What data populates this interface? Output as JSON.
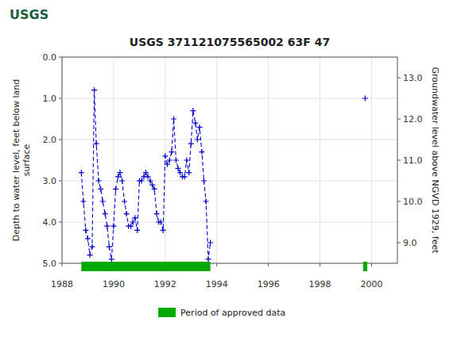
{
  "chart_data": {
    "type": "line",
    "title": "USGS 371121075565002 63F 47",
    "annotations": [
      {
        "text": "USGS"
      }
    ],
    "ylabel": "Depth to water level, feet below land\nsurface",
    "y2label": "Groundwater level above NGVD 1929, feet",
    "xlim": [
      1988,
      2001
    ],
    "ylim": [
      5.0,
      0.0
    ],
    "y2lim": [
      8.5,
      13.5
    ],
    "xticks": [
      1988,
      1990,
      1992,
      1994,
      1996,
      1998,
      2000
    ],
    "yticks": [
      {
        "value": 0.0,
        "label": "0.0"
      },
      {
        "value": 1.0,
        "label": "1.0"
      },
      {
        "value": 2.0,
        "label": "2.0"
      },
      {
        "value": 3.0,
        "label": "3.0"
      },
      {
        "value": 4.0,
        "label": "4.0"
      },
      {
        "value": 5.0,
        "label": "5.0"
      }
    ],
    "y2ticks": [
      {
        "value": 9.0,
        "label": "9.0"
      },
      {
        "value": 10.0,
        "label": "10.0"
      },
      {
        "value": 11.0,
        "label": "11.0"
      },
      {
        "value": 12.0,
        "label": "12.0"
      },
      {
        "value": 13.0,
        "label": "13.0"
      }
    ],
    "grid": true,
    "series": [
      {
        "type": "line",
        "color": "#0000cc",
        "line_style": "dashed",
        "marker": "plus",
        "x": [
          1988.75,
          1988.83,
          1988.92,
          1989.0,
          1989.08,
          1989.17,
          1989.25,
          1989.33,
          1989.42,
          1989.5,
          1989.58,
          1989.67,
          1989.75,
          1989.83,
          1989.92,
          1990.0,
          1990.08,
          1990.17,
          1990.25,
          1990.33,
          1990.42,
          1990.5,
          1990.58,
          1990.67,
          1990.75,
          1990.83,
          1990.92,
          1991.0,
          1991.08,
          1991.17,
          1991.25,
          1991.33,
          1991.42,
          1991.5,
          1991.58,
          1991.67,
          1991.75,
          1991.83,
          1991.92,
          1992.0,
          1992.08,
          1992.17,
          1992.25,
          1992.33,
          1992.42,
          1992.5,
          1992.58,
          1992.67,
          1992.75,
          1992.83,
          1992.92,
          1993.0,
          1993.08,
          1993.17,
          1993.25,
          1993.33,
          1993.42,
          1993.5,
          1993.58,
          1993.67,
          1993.75
        ],
        "values": [
          2.8,
          3.5,
          4.2,
          4.4,
          4.8,
          4.6,
          0.8,
          2.1,
          3.0,
          3.2,
          3.5,
          3.8,
          4.1,
          4.6,
          4.9,
          4.1,
          3.2,
          2.9,
          2.8,
          3.0,
          3.5,
          3.8,
          4.1,
          4.1,
          4.0,
          3.9,
          4.2,
          3.0,
          3.0,
          2.9,
          2.8,
          2.9,
          3.0,
          3.1,
          3.2,
          3.8,
          4.0,
          4.0,
          4.2,
          2.4,
          2.6,
          2.5,
          2.3,
          1.5,
          2.5,
          2.7,
          2.8,
          2.9,
          2.9,
          2.5,
          2.8,
          2.1,
          1.3,
          1.6,
          2.0,
          1.7,
          2.3,
          3.0,
          3.5,
          4.9,
          4.5
        ]
      },
      {
        "type": "scatter",
        "color": "#0000cc",
        "marker": "plus",
        "x": [
          1999.75
        ],
        "values": [
          1.0
        ]
      },
      {
        "name": "Period of approved data",
        "type": "span",
        "color": "#00aa00",
        "x_start": [
          1988.75,
          1999.67
        ],
        "x_end": [
          1993.75,
          1999.83
        ]
      }
    ]
  }
}
